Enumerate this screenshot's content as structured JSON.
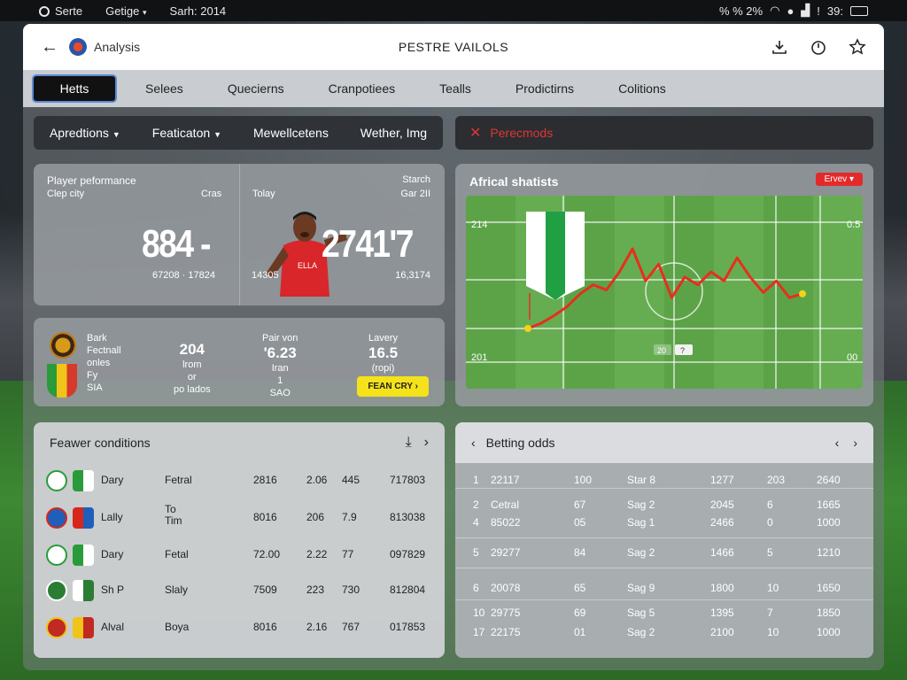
{
  "statusbar": {
    "left1": "Serte",
    "left2": "Getige",
    "left3": "Sarh: 2014",
    "right1": "%  % 2%",
    "right2": "39:"
  },
  "titlebar": {
    "app_name": "Analysis",
    "title": "PESTRE VAILOLS"
  },
  "tabs": [
    {
      "label": "Hetts",
      "active": true
    },
    {
      "label": "Selees"
    },
    {
      "label": "Quecierns"
    },
    {
      "label": "Cranpotiees"
    },
    {
      "label": "Tealls"
    },
    {
      "label": "Prodictirns"
    },
    {
      "label": "Colitions"
    }
  ],
  "filters": [
    {
      "label": "Apredtions",
      "dropdown": true
    },
    {
      "label": "Featicaton",
      "dropdown": true
    },
    {
      "label": "Mewellcetens"
    },
    {
      "label": "Wether, Img"
    }
  ],
  "alert": {
    "text": "Perecmods",
    "color": "#e03535"
  },
  "performance": {
    "title": "Player peformance",
    "sub_left": "Clep city",
    "sub_mid": "Cras",
    "today": "Tolay",
    "right_top": "Starch",
    "right_sub": "Gar 2II",
    "big_left": "884 -",
    "big_right": "2741'7",
    "foot_left": "67208 · 17824",
    "foot_mid": "14305",
    "foot_right": "16,3174",
    "jersey_text": "ELLA"
  },
  "stats": {
    "lines": [
      "Bark",
      "Fectnall",
      "onles",
      "Fy",
      "SIA"
    ],
    "col1": {
      "value": "204",
      "l1": "lrom",
      "l2": "or",
      "l3": "po lados"
    },
    "col2": {
      "top": "Pair von",
      "value": "'6.23",
      "l1": "Iran",
      "l2": "1",
      "l3": "SAO"
    },
    "col3": {
      "top": "Lavery",
      "value": "16.5",
      "l1": "(ropi)"
    },
    "cta": "FEAN CRY"
  },
  "analytics": {
    "title": "Africal shatists",
    "badge": "Ervev",
    "y_left_top": "214",
    "y_left_bottom": "201",
    "y_right_top": "0.5",
    "y_right_bottom": "00",
    "tag_a": "20",
    "tag_b": "?"
  },
  "chart_data": {
    "type": "line",
    "title": "Africal shatists",
    "x": [
      0,
      1,
      2,
      3,
      4,
      5,
      6,
      7,
      8,
      9,
      10,
      11,
      12,
      13,
      14,
      15,
      16,
      17,
      18,
      19,
      20,
      21
    ],
    "series": [
      {
        "values": [
          0.18,
          0.22,
          0.28,
          0.35,
          0.45,
          0.52,
          0.48,
          0.62,
          0.8,
          0.55,
          0.68,
          0.42,
          0.58,
          0.52,
          0.62,
          0.55,
          0.73,
          0.58,
          0.46,
          0.55,
          0.42,
          0.45
        ],
        "color": "#e62f1e"
      }
    ],
    "grid": true,
    "color": "#e62f1e"
  },
  "fixtures": {
    "title": "Feawer conditions",
    "rows": [
      {
        "team": "Dary",
        "type": "Fetral",
        "c1": "2816",
        "c2": "2.06",
        "c3": "445",
        "c4": "717803",
        "color_a": "#ffffff",
        "color_b": "#2a9b3a"
      },
      {
        "team": "Lally",
        "type": "To\nTim",
        "c1": "8016",
        "c2": "206",
        "c3": "7.9",
        "c4": "813038",
        "color_a": "#1f5fb8",
        "color_b": "#d8261c"
      },
      {
        "team": "Dary",
        "type": "Fetal",
        "c1": "72.00",
        "c2": "2.22",
        "c3": "77",
        "c4": "097829",
        "color_a": "#ffffff",
        "color_b": "#2a9b3a"
      },
      {
        "team": "Sh P",
        "type": "Slaly",
        "c1": "7509",
        "c2": "223",
        "c3": "730",
        "c4": "812804",
        "color_a": "#2a7d33",
        "color_b": "#ffffff"
      },
      {
        "team": "Alval",
        "type": "Boya",
        "c1": "8016",
        "c2": "2.16",
        "c3": "767",
        "c4": "017853",
        "color_a": "#c02a22",
        "color_b": "#f0c419"
      }
    ]
  },
  "odds": {
    "title": "Betting odds",
    "rows": [
      {
        "n": "1",
        "id": "22117",
        "a": "100",
        "s": "Star 8",
        "b": "1277",
        "c": "203",
        "d": "2640"
      },
      {
        "n": "2",
        "id": "Cetral",
        "a": "67",
        "s": "Sag 2",
        "b": "2045",
        "c": "6",
        "d": "1665"
      },
      {
        "n": "4",
        "id": "85022",
        "a": "05",
        "s": "Sag 1",
        "b": "2466",
        "c": "0",
        "d": "1000"
      },
      {
        "n": "5",
        "id": "29277",
        "a": "84",
        "s": "Sag 2",
        "b": "1466",
        "c": "5",
        "d": "1210"
      },
      {
        "n": "6",
        "id": "20078",
        "a": "65",
        "s": "Sag 9",
        "b": "1800",
        "c": "10",
        "d": "1650"
      },
      {
        "n": "10",
        "id": "29775",
        "a": "69",
        "s": "Sag 5",
        "b": "1395",
        "c": "7",
        "d": "1850"
      },
      {
        "n": "17",
        "id": "22175",
        "a": "01",
        "s": "Sag 2",
        "b": "2100",
        "c": "10",
        "d": "1000"
      }
    ]
  }
}
